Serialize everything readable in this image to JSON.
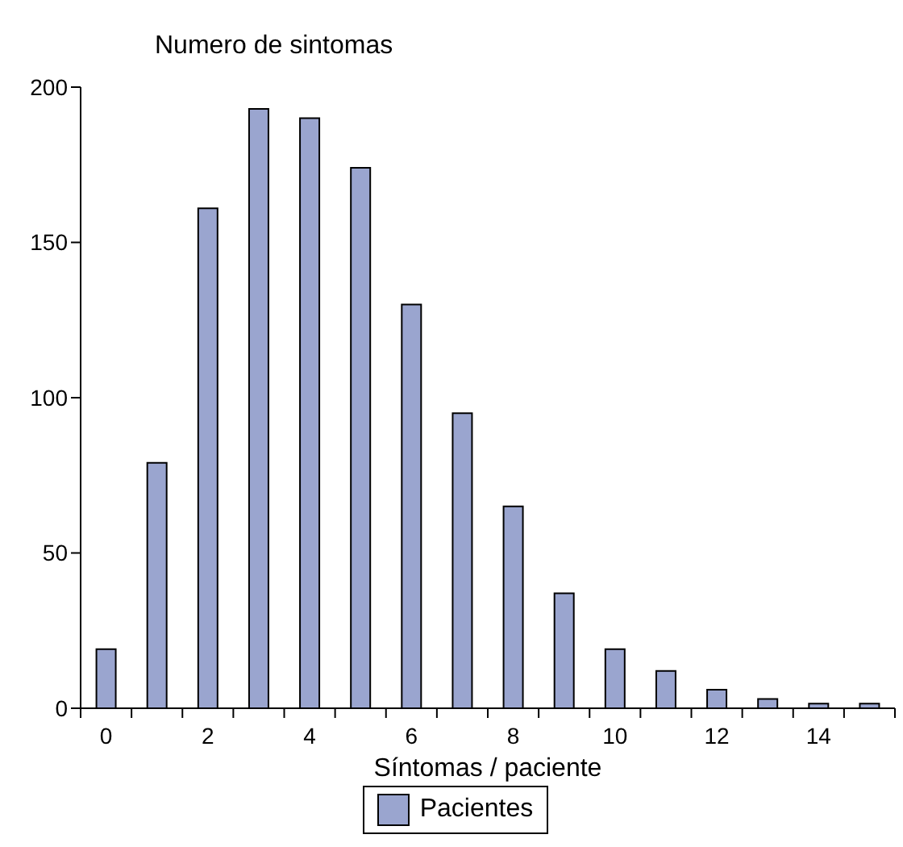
{
  "chart_data": {
    "type": "bar",
    "title": "Numero de sintomas",
    "xlabel": "Síntomas / paciente",
    "categories": [
      "0",
      null,
      "2",
      null,
      "4",
      null,
      "6",
      null,
      "8",
      null,
      "10",
      null,
      "12",
      null,
      "14",
      null
    ],
    "series": [
      {
        "name": "Pacientes",
        "color": "#9aa5cf",
        "values": [
          19,
          79,
          161,
          193,
          190,
          174,
          130,
          95,
          65,
          37,
          19,
          12,
          6,
          3,
          1.5,
          1.5
        ]
      }
    ],
    "ylim": [
      0,
      200
    ],
    "yticks": [
      0,
      50,
      100,
      150,
      200
    ],
    "grid": false,
    "legend": "bottom"
  }
}
